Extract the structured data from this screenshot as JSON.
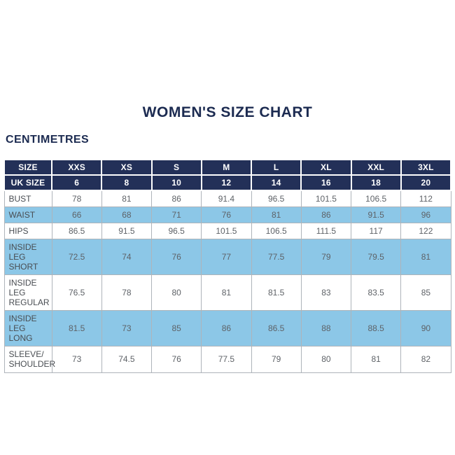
{
  "title": "WOMEN'S SIZE CHART",
  "unit_label": "CENTIMETRES",
  "colors": {
    "navy": "#233058",
    "light_blue": "#8CC7E7",
    "header_text": "#FFFFFF",
    "title_text": "#1C2B51",
    "label_text": "#494D52",
    "value_text": "#5E6267",
    "grid_line": "#AEB4BA"
  },
  "table": {
    "header_rows": [
      {
        "id": "size",
        "label": "SIZE",
        "values": [
          "XXS",
          "XS",
          "S",
          "M",
          "L",
          "XL",
          "XXL",
          "3XL"
        ]
      },
      {
        "id": "uk-size",
        "label": "UK SIZE",
        "values": [
          "6",
          "8",
          "10",
          "12",
          "14",
          "16",
          "18",
          "20"
        ]
      }
    ],
    "rows": [
      {
        "id": "bust",
        "label": "BUST",
        "shaded": false,
        "values": [
          "78",
          "81",
          "86",
          "91.4",
          "96.5",
          "101.5",
          "106.5",
          "112"
        ]
      },
      {
        "id": "waist",
        "label": "WAIST",
        "shaded": true,
        "values": [
          "66",
          "68",
          "71",
          "76",
          "81",
          "86",
          "91.5",
          "96"
        ]
      },
      {
        "id": "hips",
        "label": "HIPS",
        "shaded": false,
        "values": [
          "86.5",
          "91.5",
          "96.5",
          "101.5",
          "106.5",
          "111.5",
          "117",
          "122"
        ]
      },
      {
        "id": "inside-leg-short",
        "label": "INSIDE LEG\nSHORT",
        "shaded": true,
        "values": [
          "72.5",
          "74",
          "76",
          "77",
          "77.5",
          "79",
          "79.5",
          "81"
        ]
      },
      {
        "id": "inside-leg-regular",
        "label": "INSIDE LEG\nREGULAR",
        "shaded": false,
        "values": [
          "76.5",
          "78",
          "80",
          "81",
          "81.5",
          "83",
          "83.5",
          "85"
        ]
      },
      {
        "id": "inside-leg-long",
        "label": "INSIDE LEG\nLONG",
        "shaded": true,
        "values": [
          "81.5",
          "73",
          "85",
          "86",
          "86.5",
          "88",
          "88.5",
          "90"
        ]
      },
      {
        "id": "sleeve-shoulder",
        "label": "SLEEVE/\nSHOULDER",
        "shaded": false,
        "values": [
          "73",
          "74.5",
          "76",
          "77.5",
          "79",
          "80",
          "81",
          "82"
        ]
      }
    ]
  },
  "chart_data": {
    "type": "table",
    "title": "WOMEN'S SIZE CHART",
    "unit": "CENTIMETRES",
    "columns": [
      "SIZE",
      "XXS",
      "XS",
      "S",
      "M",
      "L",
      "XL",
      "XXL",
      "3XL"
    ],
    "rows": [
      [
        "UK SIZE",
        6,
        8,
        10,
        12,
        14,
        16,
        18,
        20
      ],
      [
        "BUST",
        78,
        81,
        86,
        91.4,
        96.5,
        101.5,
        106.5,
        112
      ],
      [
        "WAIST",
        66,
        68,
        71,
        76,
        81,
        86,
        91.5,
        96
      ],
      [
        "HIPS",
        86.5,
        91.5,
        96.5,
        101.5,
        106.5,
        111.5,
        117,
        122
      ],
      [
        "INSIDE LEG SHORT",
        72.5,
        74,
        76,
        77,
        77.5,
        79,
        79.5,
        81
      ],
      [
        "INSIDE LEG REGULAR",
        76.5,
        78,
        80,
        81,
        81.5,
        83,
        83.5,
        85
      ],
      [
        "INSIDE LEG LONG",
        81.5,
        73,
        85,
        86,
        86.5,
        88,
        88.5,
        90
      ],
      [
        "SLEEVE/SHOULDER",
        73,
        74.5,
        76,
        77.5,
        79,
        80,
        81,
        82
      ]
    ]
  }
}
